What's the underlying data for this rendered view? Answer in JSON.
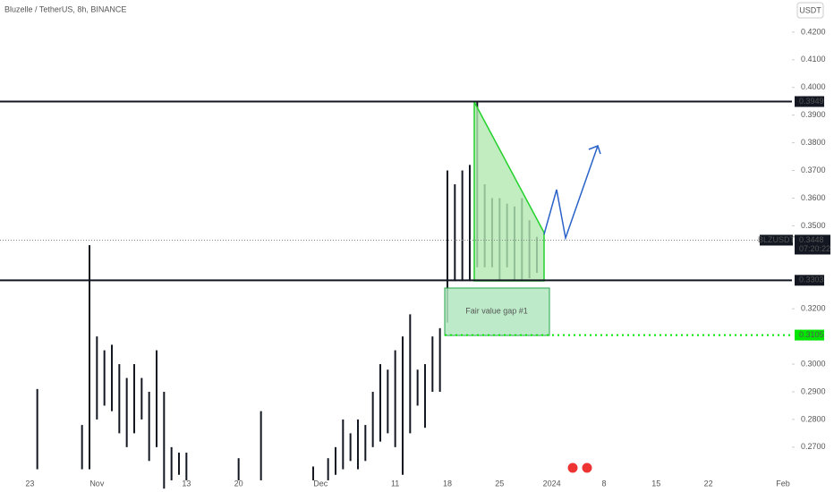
{
  "chart_data": {
    "type": "candlestick",
    "title": "Bluzelle / TetherUS, 8h, BINANCE",
    "currency": "USDT",
    "symbol": "BLZUSDT",
    "last_price": 0.3448,
    "countdown": "07:20:22",
    "annotation": "Fair value gap #1",
    "levels": [
      0.3949,
      0.3303,
      0.3105
    ],
    "level_colors": [
      "#131722",
      "#131722",
      "#00e600"
    ],
    "categories": [
      null,
      null,
      null,
      null,
      "23",
      null,
      null,
      null,
      null,
      null,
      null,
      null,
      null,
      "Nov",
      null,
      null,
      null,
      null,
      null,
      null,
      null,
      null,
      null,
      null,
      null,
      "13",
      null,
      null,
      null,
      null,
      null,
      null,
      "20",
      null,
      null,
      null,
      null,
      null,
      null,
      null,
      null,
      null,
      null,
      "Dec",
      null,
      null,
      null,
      null,
      null,
      null,
      null,
      null,
      null,
      "11",
      null,
      null,
      null,
      null,
      null,
      null,
      "18",
      null,
      null,
      null,
      null,
      null,
      null,
      "25",
      null,
      null,
      null,
      null,
      null,
      null,
      "2024",
      null,
      null,
      null,
      null,
      null,
      null,
      "8",
      null,
      null,
      null,
      null,
      null,
      null,
      "15",
      null,
      null,
      null,
      null,
      null,
      null,
      "22",
      null,
      null,
      null,
      null,
      null,
      null,
      null,
      null,
      null,
      "Feb"
    ],
    "series": [
      {
        "color": "#131722",
        "high": [
          null,
          null,
          null,
          null,
          null,
          0.291,
          null,
          null,
          null,
          null,
          null,
          0.278,
          0.343,
          0.31,
          0.305,
          0.307,
          0.3,
          0.295,
          0.3,
          0.295,
          0.29,
          0.305,
          0.29,
          0.27,
          0.268,
          0.268,
          null,
          null,
          null,
          null,
          null,
          null,
          0.266,
          null,
          null,
          0.283,
          null,
          null,
          null,
          null,
          null,
          null,
          0.263,
          null,
          0.266,
          0.27,
          0.28,
          0.275,
          0.28,
          0.278,
          0.29,
          0.3,
          0.298,
          0.305,
          0.31,
          0.318,
          0.298,
          0.3,
          0.31,
          0.313,
          0.37,
          0.365,
          0.37,
          0.372,
          0.395,
          0.365,
          0.36,
          0.36,
          0.358,
          0.357,
          0.36,
          0.352,
          0.346,
          null,
          null,
          null,
          null,
          null,
          null,
          null,
          null,
          null,
          null,
          null,
          null,
          null,
          null,
          null,
          null,
          null,
          null,
          null,
          null,
          null,
          null,
          null,
          null,
          null,
          null,
          null,
          null,
          null,
          null,
          null,
          null,
          null
        ],
        "low": [
          null,
          null,
          null,
          null,
          null,
          0.262,
          null,
          null,
          null,
          null,
          null,
          0.262,
          0.262,
          0.28,
          0.285,
          0.283,
          0.275,
          0.27,
          0.275,
          0.28,
          0.265,
          0.27,
          0.255,
          0.258,
          0.26,
          0.258,
          null,
          null,
          null,
          null,
          null,
          null,
          0.258,
          null,
          null,
          0.258,
          null,
          null,
          null,
          null,
          null,
          null,
          0.258,
          null,
          0.258,
          0.26,
          0.262,
          0.265,
          0.262,
          0.265,
          0.27,
          0.272,
          0.275,
          0.27,
          0.26,
          0.275,
          0.285,
          0.277,
          0.29,
          0.29,
          0.315,
          0.33,
          0.33,
          0.33,
          0.335,
          0.335,
          0.335,
          0.33,
          0.335,
          0.33,
          0.33,
          0.331,
          0.333,
          null,
          null,
          null,
          null,
          null,
          null,
          null,
          null,
          null,
          null,
          null,
          null,
          null,
          null,
          null,
          null,
          null,
          null,
          null,
          null,
          null,
          null,
          null,
          null,
          null,
          null,
          null,
          null,
          null,
          null,
          null,
          null,
          null
        ]
      }
    ],
    "ylim": [
      0.2554,
      0.4316
    ],
    "yticks": [
      {
        "value": 0.27,
        "label": "0.2700"
      },
      {
        "value": 0.28,
        "label": "0.2800"
      },
      {
        "value": 0.29,
        "label": "0.2900"
      },
      {
        "value": 0.3,
        "label": "0.3000"
      },
      {
        "value": 0.32,
        "label": "0.3200"
      },
      {
        "value": 0.35,
        "label": "0.3500"
      },
      {
        "value": 0.36,
        "label": "0.3600"
      },
      {
        "value": 0.37,
        "label": "0.3700"
      },
      {
        "value": 0.38,
        "label": "0.3800"
      },
      {
        "value": 0.39,
        "label": "0.3900"
      },
      {
        "value": 0.4,
        "label": "0.4000"
      },
      {
        "value": 0.41,
        "label": "0.4100"
      },
      {
        "value": 0.42,
        "label": "0.4200"
      }
    ]
  }
}
